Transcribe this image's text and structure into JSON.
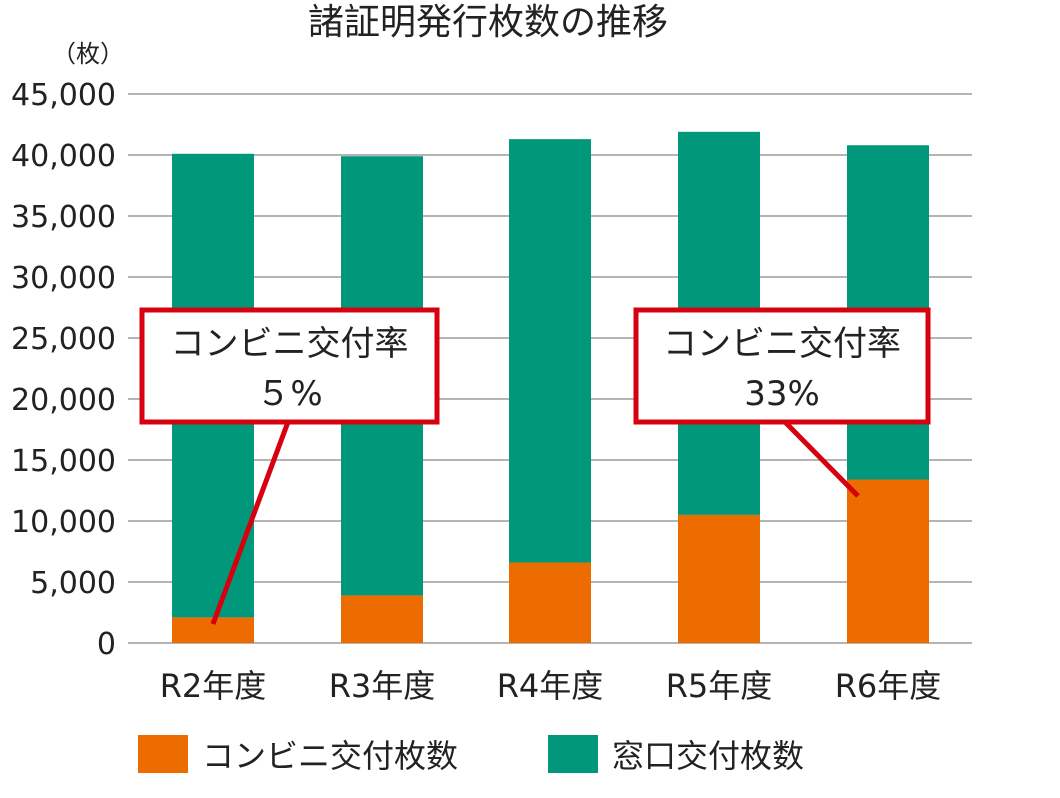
{
  "chart_data": {
    "type": "bar",
    "stacked": true,
    "title": "諸証明発行枚数の推移",
    "unit_label": "（枚）",
    "categories": [
      "R2年度",
      "R3年度",
      "R4年度",
      "R5年度",
      "R6年度"
    ],
    "series": [
      {
        "name": "コンビニ交付枚数",
        "color": "#ec6c00",
        "values": [
          2100,
          3900,
          6600,
          10500,
          13400
        ]
      },
      {
        "name": "窓口交付枚数",
        "color": "#00977a",
        "values": [
          38000,
          36000,
          34700,
          31400,
          27400
        ]
      }
    ],
    "ylim": [
      0,
      45000
    ],
    "yticks": [
      0,
      5000,
      10000,
      15000,
      20000,
      25000,
      30000,
      35000,
      40000,
      45000
    ],
    "ytick_labels": [
      "0",
      "5,000",
      "10,000",
      "15,000",
      "20,000",
      "25,000",
      "30,000",
      "35,000",
      "40,000",
      "45,000"
    ],
    "grid": true,
    "legend_position": "bottom",
    "annotations": [
      {
        "label": "コンビニ交付率",
        "value": "５%",
        "category": "R2年度"
      },
      {
        "label": "コンビニ交付率",
        "value": "33%",
        "category": "R6年度"
      }
    ],
    "colors": {
      "grid": "#b4b4b4",
      "callout_border": "#d7000f"
    }
  }
}
